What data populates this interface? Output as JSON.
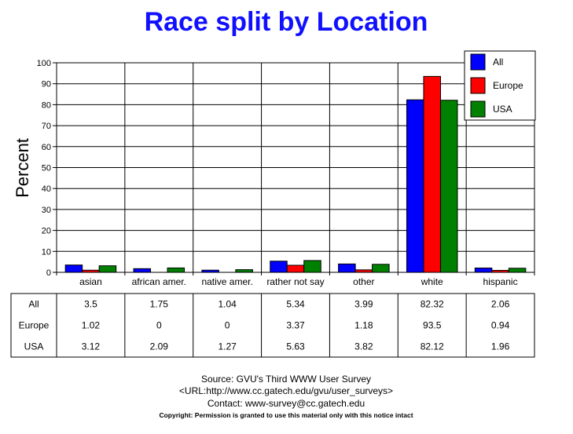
{
  "chart_data": {
    "type": "bar",
    "title": "Race split by Location",
    "ylabel": "Percent",
    "xlabel": "",
    "ylim": [
      0,
      100
    ],
    "yticks": [
      0,
      10,
      20,
      30,
      40,
      50,
      60,
      70,
      80,
      90,
      100
    ],
    "grid": true,
    "legend_placement": "top-right",
    "categories": [
      "asian",
      "african amer.",
      "native amer.",
      "rather not say",
      "other",
      "white",
      "hispanic"
    ],
    "series": [
      {
        "name": "All",
        "color": "#0000ff",
        "values": [
          3.5,
          1.75,
          1.04,
          5.34,
          3.99,
          82.32,
          2.06
        ],
        "labels": [
          "3.5",
          "1.75",
          "1.04",
          "5.34",
          "3.99",
          "82.32",
          "2.06"
        ]
      },
      {
        "name": "Europe",
        "color": "#ff0000",
        "values": [
          1.02,
          0,
          0,
          3.37,
          1.18,
          93.5,
          0.94
        ],
        "labels": [
          "1.02",
          "0",
          "0",
          "3.37",
          "1.18",
          "93.5",
          "0.94"
        ]
      },
      {
        "name": "USA",
        "color": "#008000",
        "values": [
          3.12,
          2.09,
          1.27,
          5.63,
          3.82,
          82.12,
          1.96
        ],
        "labels": [
          "3.12",
          "2.09",
          "1.27",
          "5.63",
          "3.82",
          "82.12",
          "1.96"
        ]
      }
    ]
  },
  "footer": {
    "source": "Source: GVU's Third WWW User Survey",
    "url": "<URL:http://www.cc.gatech.edu/gvu/user_surveys>",
    "contact": "Contact: www-survey@cc.gatech.edu",
    "copyright": "Copyright: Permission is granted to use this material only with this notice intact"
  }
}
